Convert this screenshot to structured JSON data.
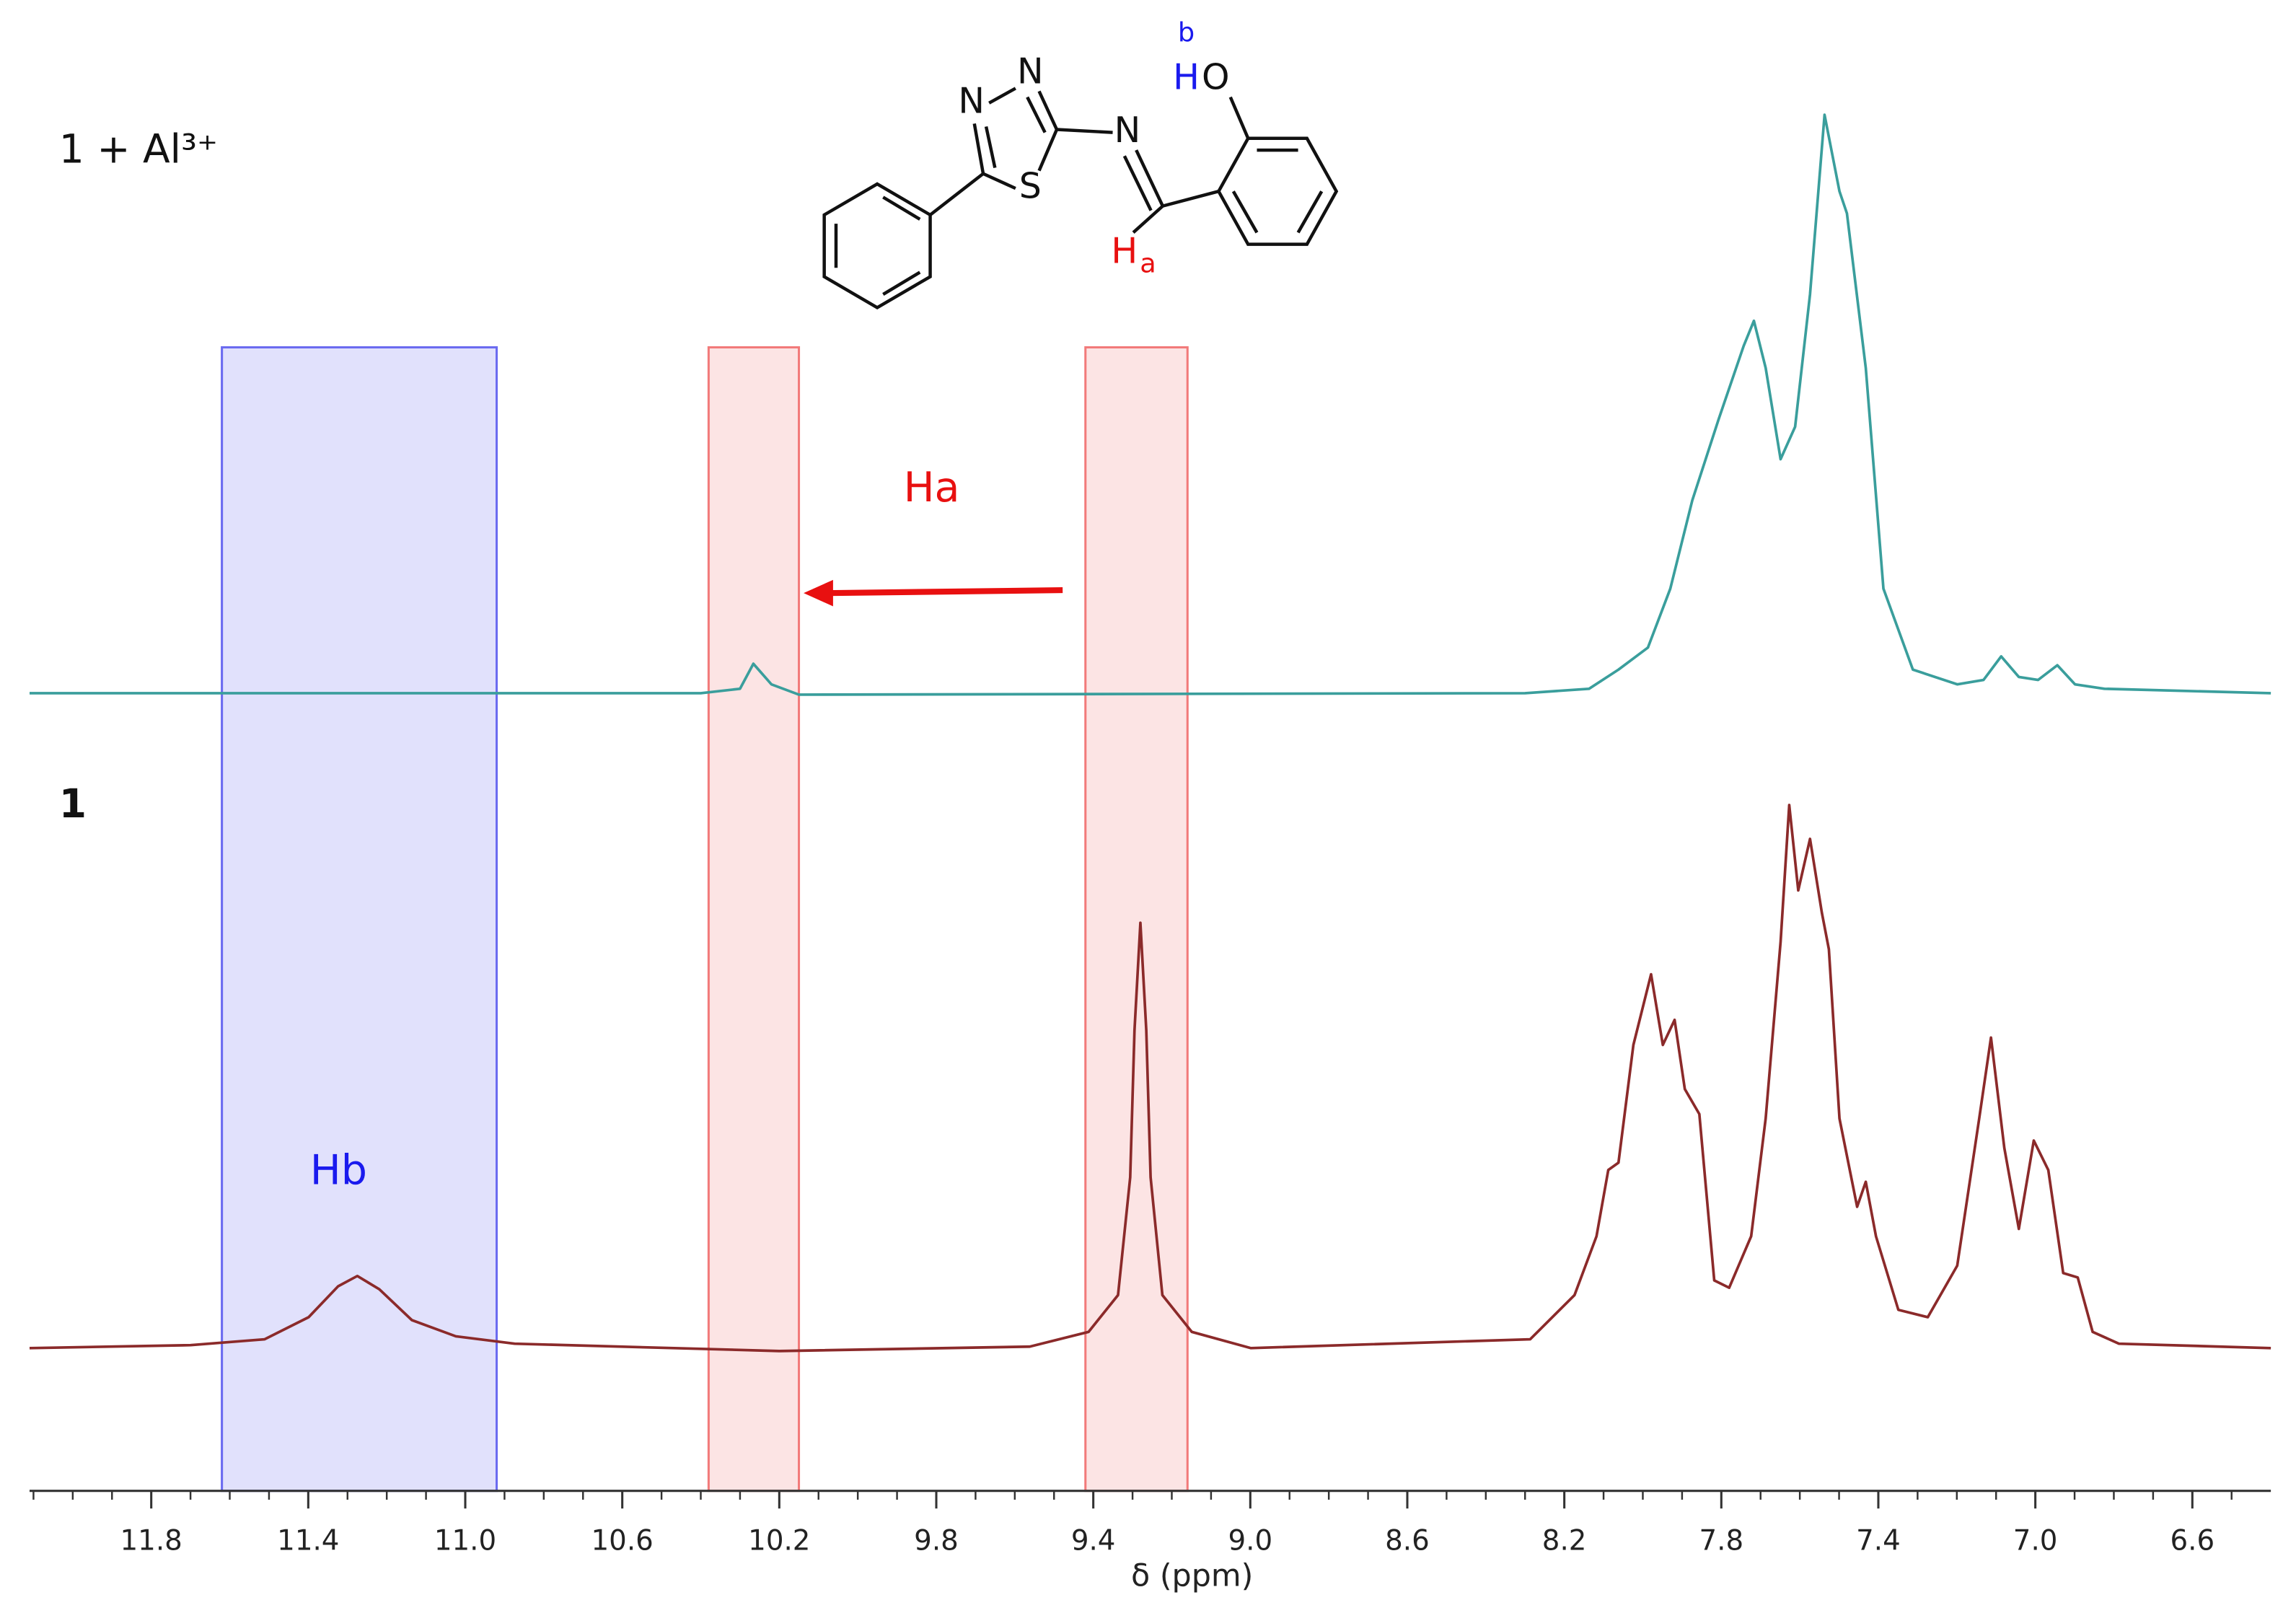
{
  "chart_data": {
    "type": "line",
    "xlabel": "δ (ppm)",
    "xlim": [
      12.11,
      6.4
    ],
    "xticks": [
      11.8,
      11.4,
      {
        "value": 11,
        "label": "11.0"
      },
      10.6,
      10.2,
      9.8,
      9.4,
      {
        "value": 9,
        "label": "9.0"
      },
      8.6,
      8.2,
      7.8,
      7.4,
      {
        "value": 7,
        "label": "7.0"
      },
      6.6
    ],
    "ylim": [
      0,
      1000
    ],
    "series": [
      {
        "name": "1 + Al³⁺",
        "color": "#3a9e9c",
        "x": [
          12.11,
          10.4,
          10.3,
          10.266,
          10.22,
          10.15,
          8.3,
          8.137,
          8.062,
          7.987,
          7.93,
          7.874,
          7.807,
          7.743,
          7.717,
          7.687,
          7.649,
          7.612,
          7.574,
          7.537,
          7.499,
          7.48,
          7.432,
          7.387,
          7.312,
          7.199,
          7.132,
          7.087,
          7.042,
          6.993,
          6.944,
          6.899,
          6.824,
          6.4
        ],
        "values": [
          542,
          542,
          545,
          562,
          548,
          541,
          542,
          545,
          558,
          573,
          613,
          673,
          728,
          778,
          795,
          763,
          701,
          723,
          813,
          935,
          883,
          868,
          763,
          613,
          558,
          548,
          551,
          567,
          553,
          551,
          561,
          548,
          545,
          542
        ]
      },
      {
        "name": "1",
        "color": "#8b2a2a",
        "x": [
          12.11,
          11.7,
          11.511,
          11.399,
          11.324,
          11.275,
          11.219,
          11.136,
          11.024,
          10.874,
          10.2,
          9.562,
          9.412,
          9.337,
          9.306,
          9.295,
          9.28,
          9.265,
          9.254,
          9.224,
          9.149,
          8.999,
          8.287,
          8.174,
          8.118,
          8.088,
          8.062,
          8.024,
          7.979,
          7.949,
          7.919,
          7.893,
          7.856,
          7.818,
          7.78,
          7.724,
          7.687,
          7.649,
          7.627,
          7.604,
          7.574,
          7.544,
          7.526,
          7.499,
          7.454,
          7.432,
          7.406,
          7.349,
          7.274,
          7.199,
          7.143,
          7.113,
          7.079,
          7.042,
          7.004,
          6.967,
          6.929,
          6.892,
          6.854,
          6.787,
          6.4
        ],
        "values": [
          97,
          99,
          103,
          118,
          139,
          146,
          137,
          116,
          105,
          100,
          95,
          98,
          108,
          133,
          213,
          313,
          386,
          313,
          213,
          133,
          108,
          97,
          103,
          133,
          173,
          218,
          223,
          303,
          351,
          303,
          320,
          273,
          256,
          143,
          138,
          173,
          253,
          373,
          466,
          408,
          443,
          393,
          368,
          253,
          193,
          210,
          173,
          123,
          118,
          153,
          253,
          308,
          233,
          178,
          238,
          218,
          148,
          145,
          108,
          100,
          97
        ]
      }
    ],
    "regions": [
      {
        "x": [
          11.62,
          10.92
        ],
        "color": "#6b6bf0"
      },
      {
        "x": [
          10.38,
          10.15
        ],
        "color": "#f27a7a"
      },
      {
        "x": [
          9.42,
          9.16
        ],
        "color": "#f27a7a"
      }
    ],
    "annotations": [
      "Ha",
      "Hb"
    ],
    "structure": {
      "atoms": [
        "N",
        "N",
        "S",
        "N",
        "H",
        "O",
        "b",
        "H",
        "a"
      ]
    }
  }
}
